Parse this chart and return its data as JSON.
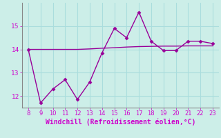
{
  "x": [
    8,
    9,
    10,
    11,
    12,
    13,
    14,
    15,
    16,
    17,
    18,
    19,
    20,
    21,
    22,
    23
  ],
  "y_curve": [
    14.0,
    11.7,
    12.3,
    12.7,
    11.85,
    12.6,
    13.85,
    14.9,
    14.5,
    15.6,
    14.35,
    13.95,
    13.95,
    14.35,
    14.35,
    14.25
  ],
  "y_line": [
    14.0,
    14.0,
    14.0,
    14.0,
    14.0,
    14.02,
    14.05,
    14.07,
    14.1,
    14.12,
    14.13,
    14.14,
    14.14,
    14.15,
    14.15,
    14.15
  ],
  "line_color": "#990099",
  "marker_color": "#990099",
  "bg_color": "#cceee8",
  "grid_color": "#aadddd",
  "xlabel": "Windchill (Refroidissement éolien,°C)",
  "xlabel_color": "#cc00cc",
  "tick_color": "#cc00cc",
  "ylim": [
    11.5,
    16.0
  ],
  "xlim": [
    7.5,
    23.5
  ],
  "yticks": [
    12,
    13,
    14,
    15
  ],
  "xticks": [
    8,
    9,
    10,
    11,
    12,
    13,
    14,
    15,
    16,
    17,
    18,
    19,
    20,
    21,
    22,
    23
  ]
}
